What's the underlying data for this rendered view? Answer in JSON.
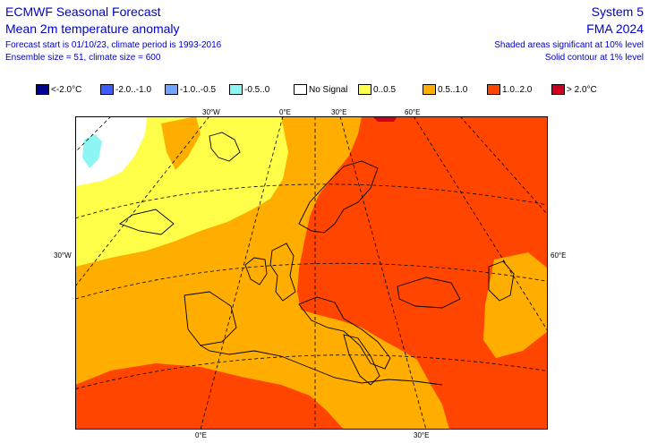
{
  "header": {
    "title": "ECMWF Seasonal Forecast",
    "subtitle": "Mean 2m temperature anomaly",
    "forecast_info": "Forecast start is 01/10/23, climate period is 1993-2016",
    "ensemble_info": "Ensemble size = 51, climate size = 600",
    "system": "System 5",
    "period": "FMA 2024",
    "significance_note": "Shaded areas significant at 10% level",
    "contour_note": "Solid contour at 1% level"
  },
  "legend": {
    "items": [
      {
        "label": "<-2.0°C",
        "color": "#00008f"
      },
      {
        "label": "-2.0..-1.0",
        "color": "#3e5bff"
      },
      {
        "label": "-1.0..-0.5",
        "color": "#6ea6ff"
      },
      {
        "label": "-0.5..0",
        "color": "#8ef5f5"
      },
      {
        "label": "No Signal",
        "color": "#ffffff"
      },
      {
        "label": "0..0.5",
        "color": "#ffff4a"
      },
      {
        "label": "0.5..1.0",
        "color": "#ffae00"
      },
      {
        "label": "1.0..2.0",
        "color": "#ff4500"
      },
      {
        "label": "> 2.0°C",
        "color": "#cc0020"
      }
    ]
  },
  "map_labels": {
    "top_30w": "30°W",
    "top_0e": "0°E",
    "top_30e": "30°E",
    "top_60e": "60°E",
    "left_30w": "30°W",
    "right_60e": "60°E",
    "bottom_0e": "0°E",
    "bottom_30e": "30°E"
  }
}
